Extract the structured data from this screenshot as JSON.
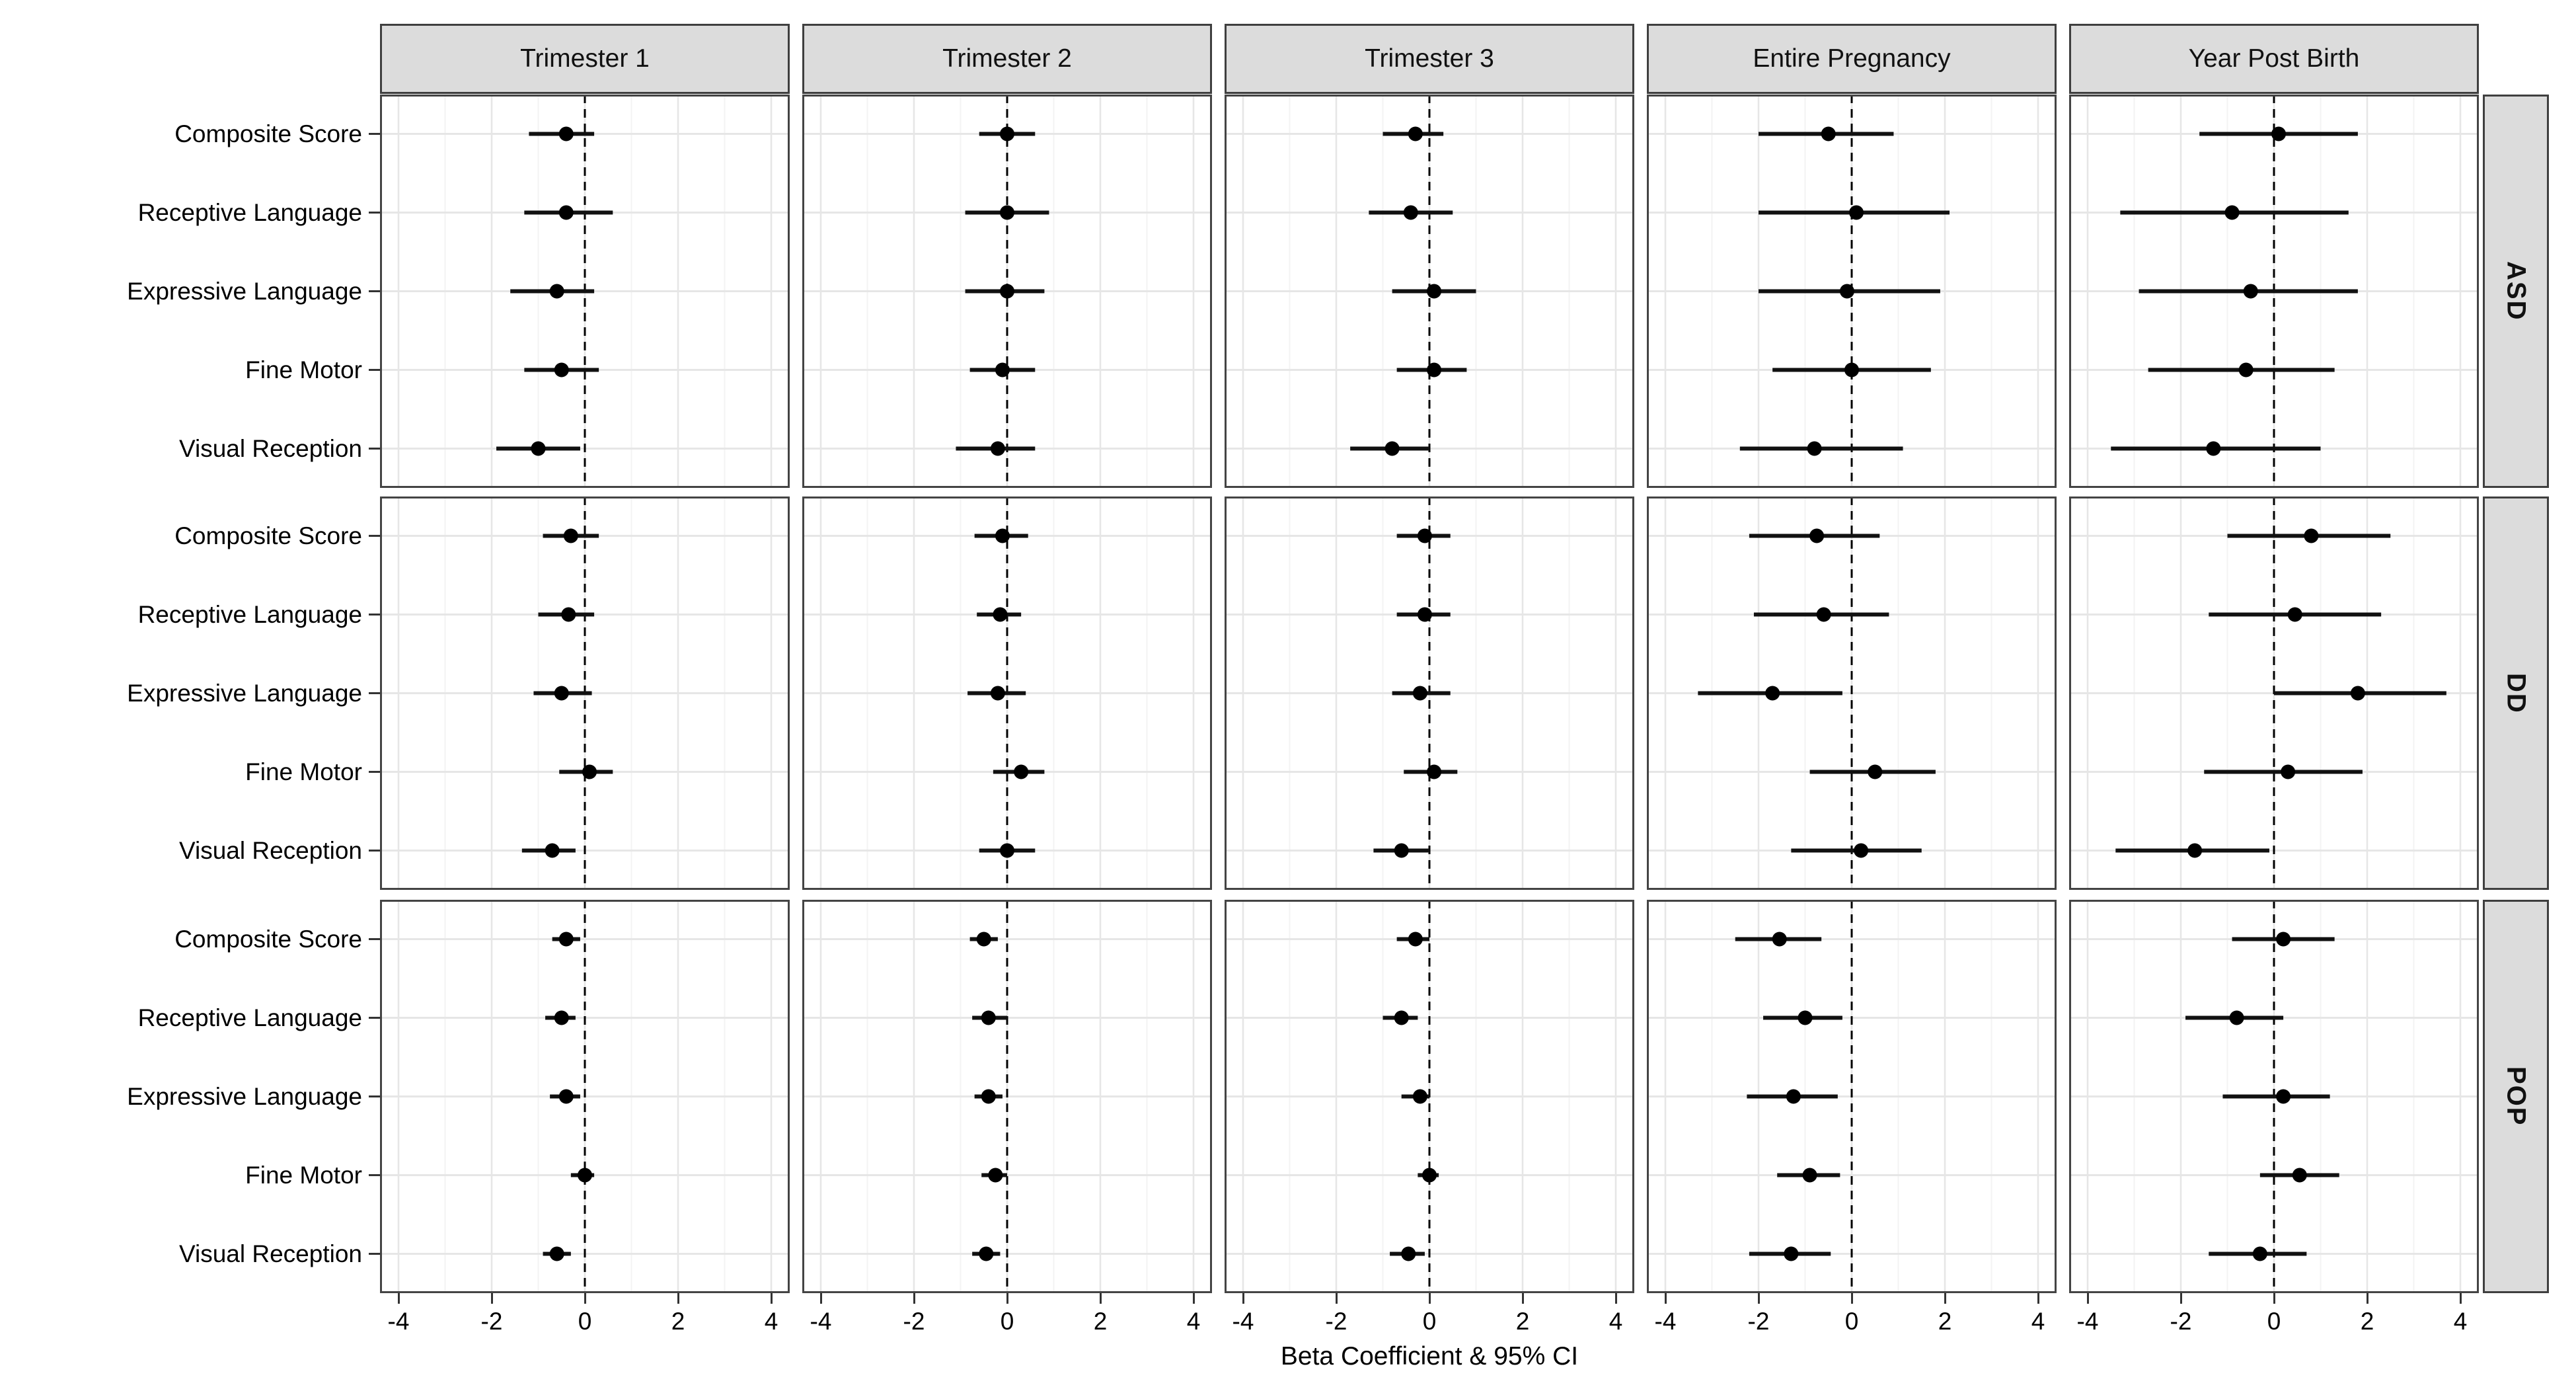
{
  "chart_data": {
    "type": "scatter",
    "variant": "faceted forest plot: point estimates with horizontal 95% confidence-interval bars, 5 facet columns x 3 facet rows",
    "xlabel": "Beta Coefficient & 95% CI",
    "x_ticks": [
      -4,
      -2,
      0,
      2,
      4
    ],
    "xlim": [
      -4.4,
      4.4
    ],
    "reference_line_x": 0,
    "grid": "light grey vertical gridlines at even values (fainter minors at odd values), light grey horizontal gridline per outcome row, dashed black vertical line at 0",
    "legend": "none",
    "col_facets": [
      "Trimester 1",
      "Trimester 2",
      "Trimester 3",
      "Entire Pregnancy",
      "Year Post Birth"
    ],
    "row_facets": [
      "ASD",
      "DD",
      "POP"
    ],
    "outcomes": [
      "Composite Score",
      "Receptive Language",
      "Expressive Language",
      "Fine Motor",
      "Visual Reception"
    ],
    "point_format": "[beta, ci_low, ci_high] per outcome, outcomes in listed order",
    "values": {
      "ASD": {
        "Trimester 1": [
          [
            -0.4,
            -1.2,
            0.2
          ],
          [
            -0.4,
            -1.3,
            0.6
          ],
          [
            -0.6,
            -1.6,
            0.2
          ],
          [
            -0.5,
            -1.3,
            0.3
          ],
          [
            -1.0,
            -1.9,
            -0.1
          ]
        ],
        "Trimester 2": [
          [
            0.0,
            -0.6,
            0.6
          ],
          [
            0.0,
            -0.9,
            0.9
          ],
          [
            0.0,
            -0.9,
            0.8
          ],
          [
            -0.1,
            -0.8,
            0.6
          ],
          [
            -0.2,
            -1.1,
            0.6
          ]
        ],
        "Trimester 3": [
          [
            -0.3,
            -1.0,
            0.3
          ],
          [
            -0.4,
            -1.3,
            0.5
          ],
          [
            0.1,
            -0.8,
            1.0
          ],
          [
            0.1,
            -0.7,
            0.8
          ],
          [
            -0.8,
            -1.7,
            0.0
          ]
        ],
        "Entire Pregnancy": [
          [
            -0.5,
            -2.0,
            0.9
          ],
          [
            0.1,
            -2.0,
            2.1
          ],
          [
            -0.1,
            -2.0,
            1.9
          ],
          [
            0.0,
            -1.7,
            1.7
          ],
          [
            -0.8,
            -2.4,
            1.1
          ]
        ],
        "Year Post Birth": [
          [
            0.1,
            -1.6,
            1.8
          ],
          [
            -0.9,
            -3.3,
            1.6
          ],
          [
            -0.5,
            -2.9,
            1.8
          ],
          [
            -0.6,
            -2.7,
            1.3
          ],
          [
            -1.3,
            -3.5,
            1.0
          ]
        ]
      },
      "DD": {
        "Trimester 1": [
          [
            -0.3,
            -0.9,
            0.3
          ],
          [
            -0.35,
            -1.0,
            0.2
          ],
          [
            -0.5,
            -1.1,
            0.15
          ],
          [
            0.1,
            -0.55,
            0.6
          ],
          [
            -0.7,
            -1.35,
            -0.2
          ]
        ],
        "Trimester 2": [
          [
            -0.1,
            -0.7,
            0.45
          ],
          [
            -0.15,
            -0.65,
            0.3
          ],
          [
            -0.2,
            -0.85,
            0.4
          ],
          [
            0.3,
            -0.3,
            0.8
          ],
          [
            0.0,
            -0.6,
            0.6
          ]
        ],
        "Trimester 3": [
          [
            -0.1,
            -0.7,
            0.45
          ],
          [
            -0.1,
            -0.7,
            0.45
          ],
          [
            -0.2,
            -0.8,
            0.45
          ],
          [
            0.1,
            -0.55,
            0.6
          ],
          [
            -0.6,
            -1.2,
            0.0
          ]
        ],
        "Entire Pregnancy": [
          [
            -0.75,
            -2.2,
            0.6
          ],
          [
            -0.6,
            -2.1,
            0.8
          ],
          [
            -1.7,
            -3.3,
            -0.2
          ],
          [
            0.5,
            -0.9,
            1.8
          ],
          [
            0.2,
            -1.3,
            1.5
          ]
        ],
        "Year Post Birth": [
          [
            0.8,
            -1.0,
            2.5
          ],
          [
            0.45,
            -1.4,
            2.3
          ],
          [
            1.8,
            0.0,
            3.7
          ],
          [
            0.3,
            -1.5,
            1.9
          ],
          [
            -1.7,
            -3.4,
            -0.1
          ]
        ]
      },
      "POP": {
        "Trimester 1": [
          [
            -0.4,
            -0.7,
            -0.1
          ],
          [
            -0.5,
            -0.85,
            -0.2
          ],
          [
            -0.4,
            -0.75,
            -0.1
          ],
          [
            0.0,
            -0.3,
            0.2
          ],
          [
            -0.6,
            -0.9,
            -0.3
          ]
        ],
        "Trimester 2": [
          [
            -0.5,
            -0.8,
            -0.2
          ],
          [
            -0.4,
            -0.75,
            0.0
          ],
          [
            -0.4,
            -0.7,
            -0.1
          ],
          [
            -0.25,
            -0.55,
            0.0
          ],
          [
            -0.45,
            -0.75,
            -0.15
          ]
        ],
        "Trimester 3": [
          [
            -0.3,
            -0.7,
            0.0
          ],
          [
            -0.6,
            -1.0,
            -0.25
          ],
          [
            -0.2,
            -0.6,
            0.0
          ],
          [
            0.0,
            -0.25,
            0.2
          ],
          [
            -0.45,
            -0.85,
            -0.1
          ]
        ],
        "Entire Pregnancy": [
          [
            -1.55,
            -2.5,
            -0.65
          ],
          [
            -1.0,
            -1.9,
            -0.2
          ],
          [
            -1.25,
            -2.25,
            -0.3
          ],
          [
            -0.9,
            -1.6,
            -0.25
          ],
          [
            -1.3,
            -2.2,
            -0.45
          ]
        ],
        "Year Post Birth": [
          [
            0.2,
            -0.9,
            1.3
          ],
          [
            -0.8,
            -1.9,
            0.2
          ],
          [
            0.2,
            -1.1,
            1.2
          ],
          [
            0.55,
            -0.3,
            1.4
          ],
          [
            -0.3,
            -1.4,
            0.7
          ]
        ]
      }
    },
    "colors": {
      "marker": "#000000",
      "ci_line": "#111111",
      "strip_bg": "#dcdcdc",
      "strip_border": "#3f3f3f",
      "panel_border": "#444444",
      "gridline_major": "#e6e6e6",
      "gridline_minor": "#f3f3f3",
      "zero_line": "#000000",
      "text": "#000000"
    }
  }
}
